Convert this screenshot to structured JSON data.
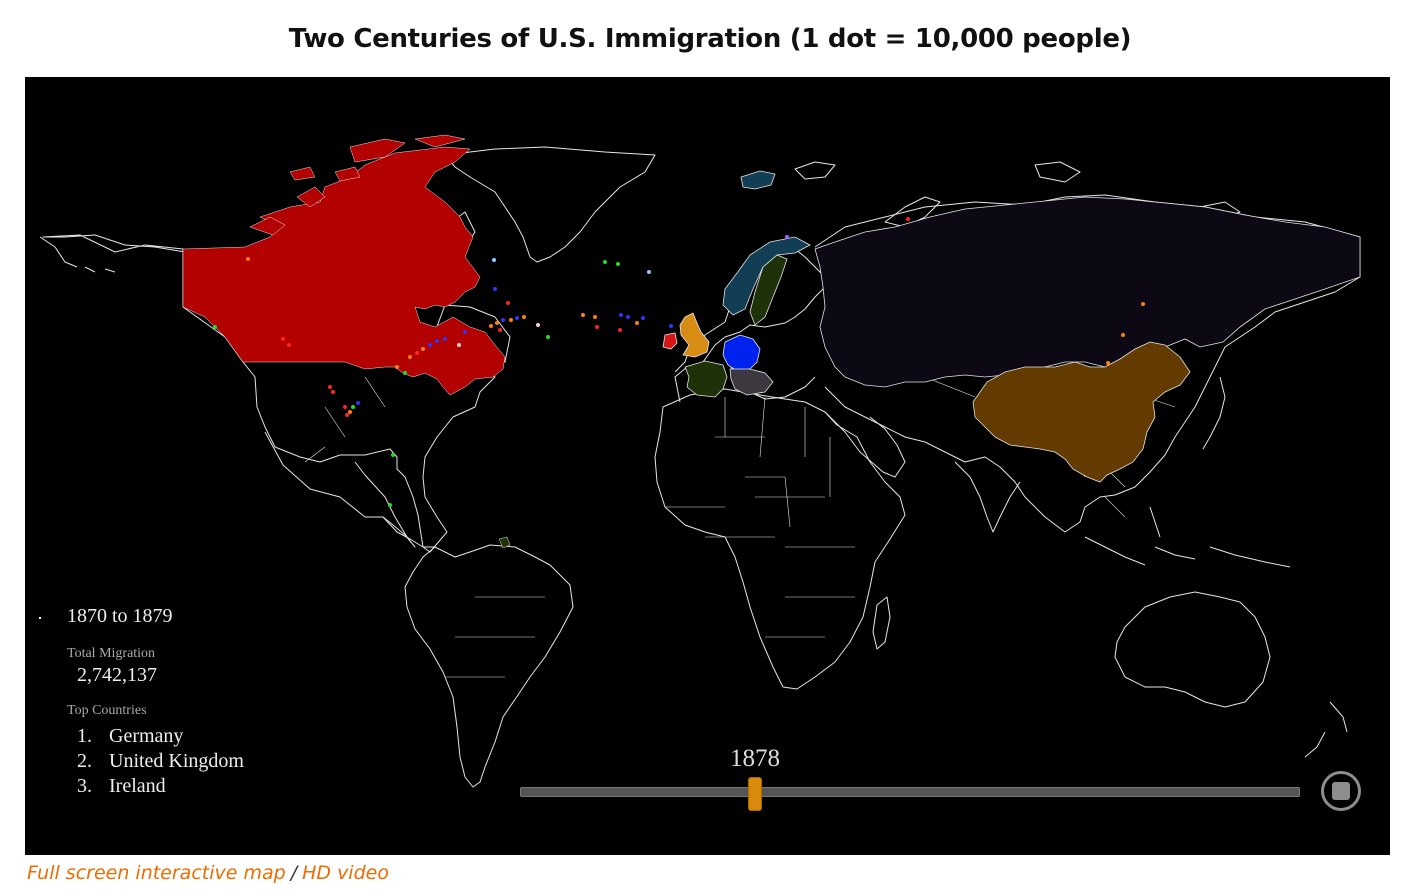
{
  "title": "Two Centuries of U.S. Immigration (1 dot = 10,000 people)",
  "info": {
    "period": "1870 to 1879",
    "total_label": "Total Migration",
    "total_value": "2,742,137",
    "top_label": "Top Countries",
    "top_countries": [
      {
        "rank": "1.",
        "name": "Germany"
      },
      {
        "rank": "2.",
        "name": "United Kingdom"
      },
      {
        "rank": "3.",
        "name": "Ireland"
      }
    ]
  },
  "slider": {
    "year": "1878",
    "min_year": 1820,
    "max_year": 2013,
    "value": 1878
  },
  "footer": {
    "interactive_link": "Full screen interactive map",
    "separator": "/",
    "video_link": "HD video"
  },
  "colors": {
    "background": "#000000",
    "borders": "#e6e6e6",
    "canada": "#b30000",
    "russian_empire": "#0c0814",
    "china": "#633a00",
    "germany": "#0022ee",
    "united_kingdom": "#d78c14",
    "ireland": "#d61616",
    "france": "#1d3209",
    "sweden": "#1d3209",
    "norway": "#123e55",
    "iceland": "#123e55",
    "austria_hungary": "#3d3740",
    "slider_handle": "#d88a0a",
    "link": "#ee6c00"
  },
  "icons": {
    "stop": "stop-icon"
  }
}
